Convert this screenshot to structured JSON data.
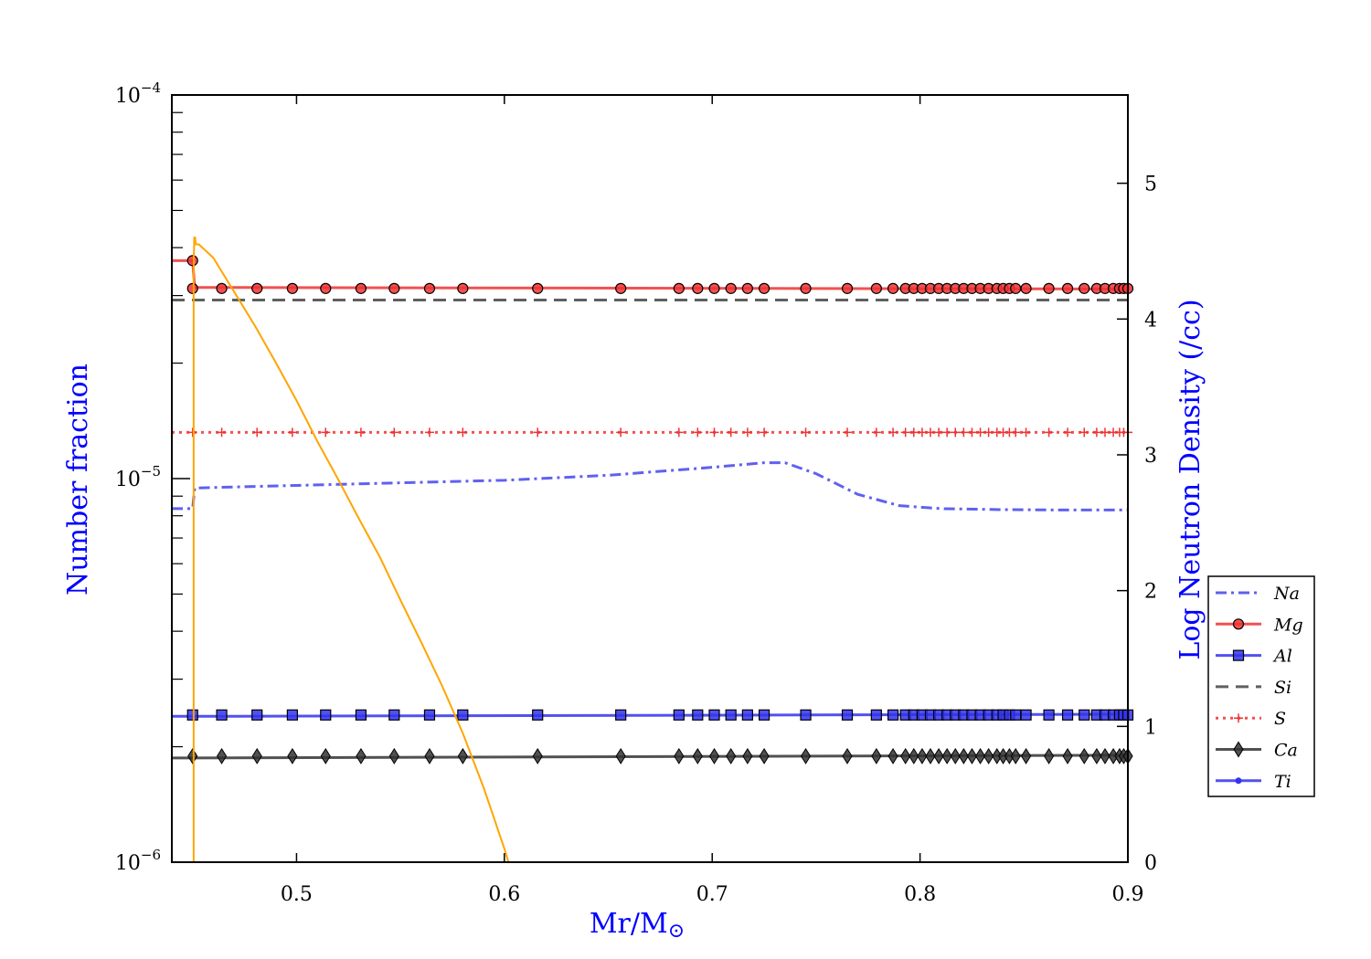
{
  "chart_data": {
    "type": "line",
    "xlabel": "Mr/M",
    "xlabel_symbol": "⊙",
    "ylabel_left": "Number fraction",
    "ylabel_right": "Log Neutron Density (/cc)",
    "xlim": [
      0.44,
      0.9
    ],
    "ylim_left": [
      1e-06,
      0.0001
    ],
    "yscale_left": "log",
    "ylim_right": [
      0,
      5.65
    ],
    "x_ticks": [
      0.5,
      0.6,
      0.7,
      0.8,
      0.9
    ],
    "x_tick_labels": [
      "0.5",
      "0.6",
      "0.7",
      "0.8",
      "0.9"
    ],
    "y_left_ticks": [
      {
        "value": 1e-06,
        "mantissa": "10",
        "exponent": "−6"
      },
      {
        "value": 1e-05,
        "mantissa": "10",
        "exponent": "−5"
      },
      {
        "value": 0.0001,
        "mantissa": "10",
        "exponent": "−4"
      }
    ],
    "y_right_ticks": [
      0,
      1,
      2,
      3,
      4,
      5
    ],
    "y_right_tick_labels": [
      "0",
      "1",
      "2",
      "3",
      "4",
      "5"
    ],
    "grid": false,
    "legend_position": "lower-right",
    "marker_x": [
      0.45,
      0.464,
      0.481,
      0.498,
      0.514,
      0.531,
      0.547,
      0.564,
      0.58,
      0.616,
      0.656,
      0.684,
      0.693,
      0.701,
      0.709,
      0.717,
      0.725,
      0.745,
      0.765,
      0.779,
      0.787,
      0.793,
      0.797,
      0.801,
      0.805,
      0.809,
      0.813,
      0.817,
      0.821,
      0.825,
      0.829,
      0.833,
      0.837,
      0.84,
      0.843,
      0.846,
      0.851,
      0.862,
      0.871,
      0.879,
      0.885,
      0.889,
      0.893,
      0.896,
      0.898,
      0.9
    ],
    "series": [
      {
        "name": "Na",
        "axis": "left",
        "color": "#4444ee",
        "dash": "12,5,3,5",
        "marker": "none",
        "x": [
          0.44,
          0.45,
          0.451,
          0.5,
          0.6,
          0.65,
          0.7,
          0.725,
          0.735,
          0.75,
          0.77,
          0.79,
          0.81,
          0.84,
          0.87,
          0.9
        ],
        "y": [
          8.35e-06,
          8.35e-06,
          9.45e-06,
          9.6e-06,
          9.9e-06,
          1.02e-05,
          1.07e-05,
          1.1e-05,
          1.1e-05,
          1.03e-05,
          9.1e-06,
          8.5e-06,
          8.35e-06,
          8.3e-06,
          8.28e-06,
          8.28e-06
        ]
      },
      {
        "name": "Mg",
        "axis": "left",
        "color": "#ee3333",
        "dash": "",
        "marker": "circle",
        "x": [
          0.44,
          0.45,
          0.451,
          0.9
        ],
        "y": [
          3.7e-05,
          3.7e-05,
          3.15e-05,
          3.12e-05
        ],
        "marker_y": 3.13e-05,
        "marker_extra": [
          {
            "x": 0.45,
            "y": 3.7e-05
          }
        ]
      },
      {
        "name": "Al",
        "axis": "left",
        "color": "#3333ee",
        "dash": "",
        "marker": "square",
        "x": [
          0.44,
          0.45,
          0.9
        ],
        "y": [
          2.4e-06,
          2.4e-06,
          2.43e-06
        ],
        "marker_y": 2.42e-06
      },
      {
        "name": "Si",
        "axis": "left",
        "color": "#444444",
        "dash": "14,8",
        "marker": "none",
        "x": [
          0.44,
          0.9
        ],
        "y": [
          2.92e-05,
          2.92e-05
        ]
      },
      {
        "name": "S",
        "axis": "left",
        "color": "#ee3333",
        "dash": "3,5",
        "marker": "plus",
        "x": [
          0.44,
          0.9
        ],
        "y": [
          1.32e-05,
          1.32e-05
        ],
        "marker_y": 1.32e-05
      },
      {
        "name": "Ca",
        "axis": "left",
        "color": "#333333",
        "dash": "",
        "marker": "diamond",
        "x": [
          0.44,
          0.45,
          0.9
        ],
        "y": [
          1.87e-06,
          1.87e-06,
          1.9e-06
        ],
        "marker_y": 1.89e-06
      },
      {
        "name": "Ti",
        "axis": "left",
        "color": "#3333ee",
        "dash": "",
        "marker": "dot",
        "x": [],
        "y": []
      },
      {
        "axis": "right",
        "color": "#ffa500",
        "dash": "",
        "marker": "none",
        "in_legend": false,
        "x": [
          0.4505,
          0.4505,
          0.4508,
          0.4512,
          0.4515,
          0.453,
          0.46,
          0.47,
          0.48,
          0.49,
          0.5,
          0.51,
          0.52,
          0.53,
          0.54,
          0.55,
          0.56,
          0.57,
          0.58,
          0.59,
          0.6,
          0.602
        ],
        "y": [
          0,
          4.4,
          4.6,
          4.6,
          4.55,
          4.55,
          4.45,
          4.2,
          3.95,
          3.68,
          3.4,
          3.1,
          2.82,
          2.53,
          2.25,
          1.93,
          1.62,
          1.3,
          0.95,
          0.55,
          0.1,
          0
        ]
      }
    ]
  }
}
